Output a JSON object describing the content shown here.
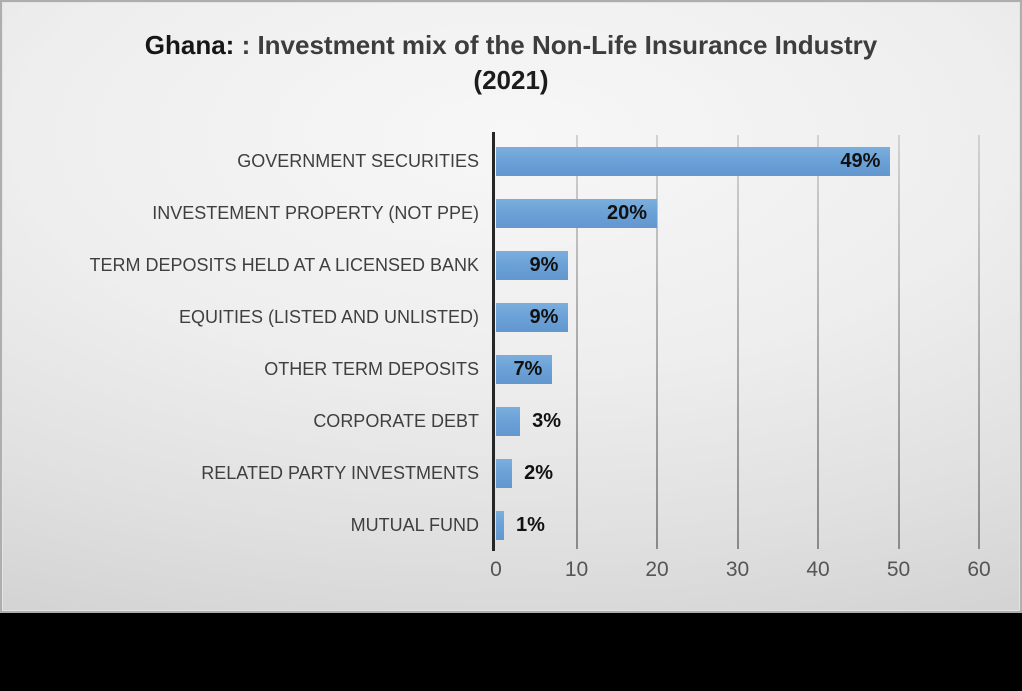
{
  "title": {
    "prefix": "Ghana:",
    "rest": " : Investment mix of the Non-Life Insurance Industry",
    "line2": "(2021)"
  },
  "colors": {
    "bar": "#6ea4d9",
    "axis": "#262626",
    "gridline": "#9a9a9a",
    "title_text": "#3d3d3d",
    "category_text": "#3f3f3f",
    "tick_text": "#555555",
    "data_label_text": "#111111",
    "panel_background": "#e6e6e6",
    "bottom_band": "#000000"
  },
  "chart_data": {
    "type": "bar",
    "orientation": "horizontal",
    "title": "Ghana: : Investment mix of the Non-Life Insurance Industry (2021)",
    "xlabel": "",
    "ylabel": "",
    "categories": [
      "GOVERNMENT SECURITIES",
      "INVESTEMENT PROPERTY (NOT PPE)",
      "TERM DEPOSITS HELD AT A LICENSED BANK",
      "EQUITIES (LISTED AND UNLISTED)",
      "OTHER TERM DEPOSITS",
      "CORPORATE DEBT",
      "RELATED PARTY INVESTMENTS",
      "MUTUAL FUND"
    ],
    "values": [
      49,
      20,
      9,
      9,
      7,
      3,
      2,
      1
    ],
    "data_labels": [
      "49%",
      "20%",
      "9%",
      "9%",
      "7%",
      "3%",
      "2%",
      "1%"
    ],
    "unit": "%",
    "xlim": [
      0,
      60
    ],
    "xticks": [
      0,
      10,
      20,
      30,
      40,
      50,
      60
    ],
    "grid": true,
    "legend": false
  }
}
